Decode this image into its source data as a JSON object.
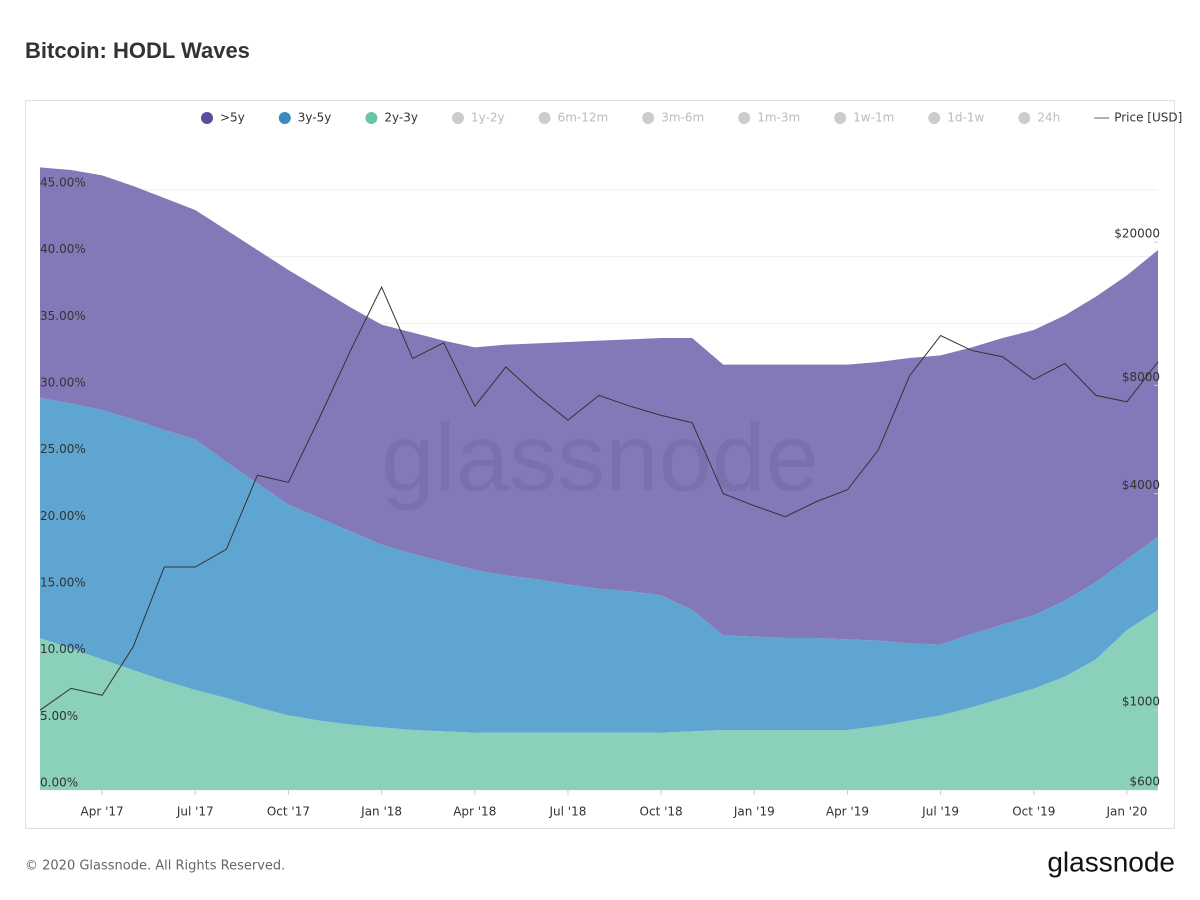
{
  "chart_data": {
    "type": "area",
    "title": "Bitcoin: HODL Waves",
    "watermark": "glassnode",
    "footer": "© 2020 Glassnode. All Rights Reserved.",
    "logo": "glassnode",
    "stacked": true,
    "grid": true,
    "x": [
      "2017-02",
      "2017-03",
      "2017-04",
      "2017-05",
      "2017-06",
      "2017-07",
      "2017-08",
      "2017-09",
      "2017-10",
      "2017-11",
      "2017-12",
      "2018-01",
      "2018-02",
      "2018-03",
      "2018-04",
      "2018-05",
      "2018-06",
      "2018-07",
      "2018-08",
      "2018-09",
      "2018-10",
      "2018-11",
      "2018-12",
      "2019-01",
      "2019-02",
      "2019-03",
      "2019-04",
      "2019-05",
      "2019-06",
      "2019-07",
      "2019-08",
      "2019-09",
      "2019-10",
      "2019-11",
      "2019-12",
      "2020-01",
      "2020-02"
    ],
    "xlim": [
      "2017-02",
      "2020-02"
    ],
    "xticks": [
      {
        "value": "2017-04",
        "label": "Apr '17"
      },
      {
        "value": "2017-07",
        "label": "Jul '17"
      },
      {
        "value": "2017-10",
        "label": "Oct '17"
      },
      {
        "value": "2018-01",
        "label": "Jan '18"
      },
      {
        "value": "2018-04",
        "label": "Apr '18"
      },
      {
        "value": "2018-07",
        "label": "Jul '18"
      },
      {
        "value": "2018-10",
        "label": "Oct '18"
      },
      {
        "value": "2019-01",
        "label": "Jan '19"
      },
      {
        "value": "2019-04",
        "label": "Apr '19"
      },
      {
        "value": "2019-07",
        "label": "Jul '19"
      },
      {
        "value": "2019-10",
        "label": "Oct '19"
      },
      {
        "value": "2020-01",
        "label": "Jan '20"
      }
    ],
    "ylim": [
      0,
      49.5
    ],
    "yticks": [
      {
        "value": 0,
        "label": "0.00%"
      },
      {
        "value": 5,
        "label": "5.00%"
      },
      {
        "value": 10,
        "label": "10.00%"
      },
      {
        "value": 15,
        "label": "15.00%"
      },
      {
        "value": 20,
        "label": "20.00%"
      },
      {
        "value": 25,
        "label": "25.00%"
      },
      {
        "value": 30,
        "label": "30.00%"
      },
      {
        "value": 35,
        "label": "35.00%"
      },
      {
        "value": 40,
        "label": "40.00%"
      },
      {
        "value": 45,
        "label": "45.00%"
      }
    ],
    "y2log": true,
    "y2lim": [
      600,
      41000
    ],
    "y2ticks": [
      {
        "value": 600,
        "label": "$600"
      },
      {
        "value": 1000,
        "label": "$1000"
      },
      {
        "value": 4000,
        "label": "$4000"
      },
      {
        "value": 8000,
        "label": "$8000"
      },
      {
        "value": 20000,
        "label": "$20000"
      }
    ],
    "series": [
      {
        "name": ">5y",
        "color": "#8479b8",
        "legend_color": "#5a4e9c",
        "values": [
          17.3,
          17.5,
          17.6,
          17.5,
          17.4,
          17.2,
          17.4,
          17.5,
          17.6,
          17.2,
          16.8,
          16.5,
          16.6,
          16.6,
          16.7,
          17.3,
          17.7,
          18.2,
          18.6,
          18.9,
          19.3,
          20.4,
          20.3,
          20.4,
          20.5,
          20.5,
          20.6,
          20.9,
          21.4,
          21.7,
          21.5,
          21.5,
          21.4,
          21.4,
          21.4,
          21.3,
          21.5
        ]
      },
      {
        "name": "3y-5y",
        "color": "#5ea6d1",
        "legend_color": "#3a8abf",
        "values": [
          18.0,
          18.4,
          18.7,
          18.8,
          18.8,
          18.8,
          17.7,
          16.8,
          15.8,
          15.2,
          14.5,
          13.7,
          13.2,
          12.7,
          12.2,
          11.8,
          11.5,
          11.1,
          10.8,
          10.6,
          10.3,
          9.1,
          7.1,
          7.0,
          6.9,
          6.9,
          6.8,
          6.4,
          5.8,
          5.3,
          5.5,
          5.5,
          5.5,
          5.7,
          5.8,
          5.3,
          5.5
        ]
      },
      {
        "name": "2y-3y",
        "color": "#8bd0bb",
        "legend_color": "#6cc4a8",
        "values": [
          11.4,
          10.6,
          9.8,
          9.0,
          8.2,
          7.5,
          6.9,
          6.2,
          5.6,
          5.2,
          4.9,
          4.7,
          4.5,
          4.4,
          4.3,
          4.3,
          4.3,
          4.3,
          4.3,
          4.3,
          4.3,
          4.4,
          4.5,
          4.5,
          4.5,
          4.5,
          4.5,
          4.8,
          5.2,
          5.6,
          6.2,
          6.9,
          7.6,
          8.5,
          9.8,
          12.0,
          13.5
        ]
      },
      {
        "name": "Price [USD]",
        "color": "#333333",
        "legend_color": "#999999",
        "axis": "y2",
        "type": "line",
        "values": [
          1000,
          1150,
          1100,
          1500,
          2500,
          2500,
          2800,
          4500,
          4300,
          6500,
          10000,
          15000,
          9500,
          10500,
          7000,
          9000,
          7500,
          6400,
          7500,
          7000,
          6600,
          6300,
          4000,
          3700,
          3450,
          3800,
          4100,
          5300,
          8500,
          11000,
          10000,
          9600,
          8300,
          9200,
          7500,
          7200,
          9300
        ]
      }
    ],
    "inactive_legend": [
      "1y-2y",
      "6m-12m",
      "3m-6m",
      "1m-3m",
      "1w-1m",
      "1d-1w",
      "24h"
    ]
  }
}
